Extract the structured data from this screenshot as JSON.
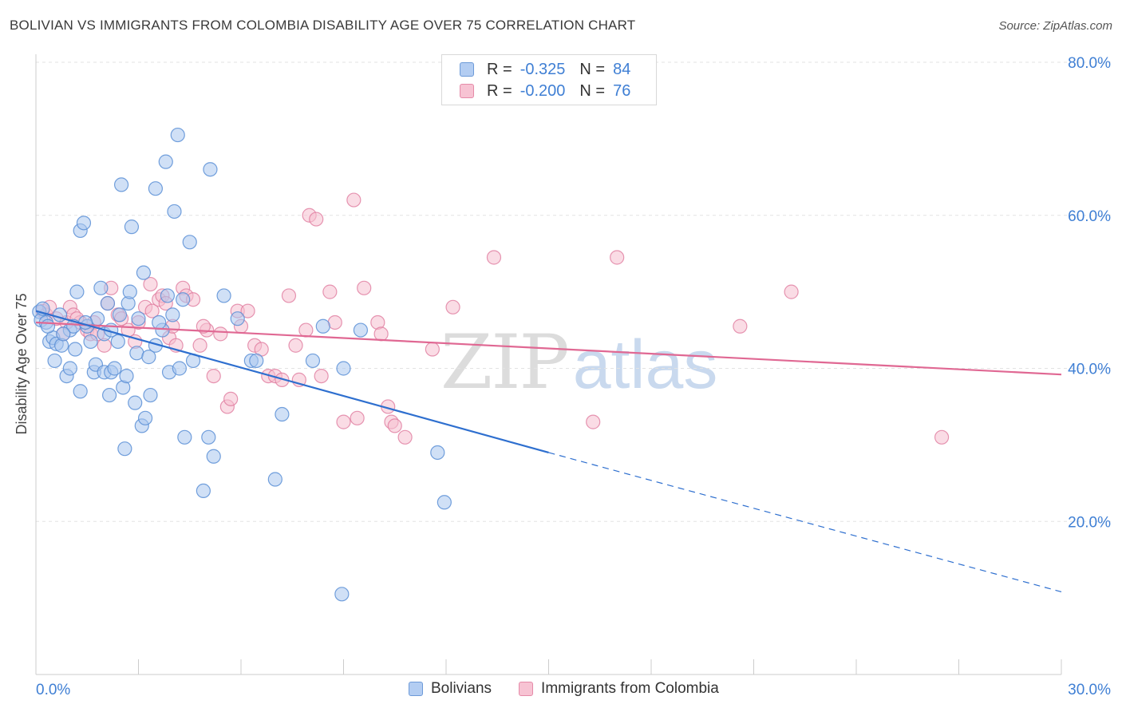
{
  "header": {
    "title": "BOLIVIAN VS IMMIGRANTS FROM COLOMBIA DISABILITY AGE OVER 75 CORRELATION CHART",
    "source": "Source: ZipAtlas.com"
  },
  "watermark": {
    "zip": "ZIP",
    "atlas": "atlas"
  },
  "legend": {
    "rows": [
      {
        "r_label": "R =",
        "r_value": "-0.325",
        "n_label": "N =",
        "n_value": "84"
      },
      {
        "r_label": "R =",
        "r_value": "-0.200",
        "n_label": "N =",
        "n_value": "76"
      }
    ]
  },
  "bottom_legend": {
    "series1": "Bolivians",
    "series2": "Immigrants from Colombia"
  },
  "colors": {
    "blue_fill": "#a9c6ef",
    "blue_stroke": "#5b8fd6",
    "blue_line": "#2e6fcf",
    "pink_fill": "#f6bfd0",
    "pink_stroke": "#e07c9f",
    "pink_line": "#e06893",
    "tick_label": "#3f7fd4",
    "grid": "#e3e3e3"
  },
  "chart_data": {
    "type": "scatter",
    "title": "BOLIVIAN VS IMMIGRANTS FROM COLOMBIA DISABILITY AGE OVER 75 CORRELATION CHART",
    "ylabel": "Disability Age Over 75",
    "xlabel": "",
    "xlim": [
      0,
      30
    ],
    "ylim": [
      0,
      80
    ],
    "x_ticks_labeled": [
      0,
      30
    ],
    "x_tick_labels": [
      "0.0%",
      "30.0%"
    ],
    "x_minor_ticks": [
      3,
      6,
      9,
      12,
      15,
      18,
      21,
      24,
      27
    ],
    "y_ticks": [
      20,
      40,
      60,
      80
    ],
    "y_tick_labels": [
      "20.0%",
      "40.0%",
      "60.0%",
      "80.0%"
    ],
    "grid": "horizontal dashed",
    "legend_position": "top-center",
    "series": [
      {
        "name": "Bolivians",
        "color": "blue",
        "points": [
          [
            0.1,
            47.4
          ],
          [
            0.15,
            46.3
          ],
          [
            0.2,
            47.8
          ],
          [
            0.3,
            46.0
          ],
          [
            0.4,
            43.5
          ],
          [
            0.5,
            44.0
          ],
          [
            0.55,
            41.0
          ],
          [
            0.6,
            43.2
          ],
          [
            0.7,
            47.0
          ],
          [
            0.75,
            43.0
          ],
          [
            0.9,
            39.0
          ],
          [
            1.0,
            45.0
          ],
          [
            1.1,
            45.5
          ],
          [
            1.15,
            42.5
          ],
          [
            1.2,
            50.0
          ],
          [
            1.3,
            37.0
          ],
          [
            1.3,
            58.0
          ],
          [
            1.4,
            59.0
          ],
          [
            1.5,
            45.5
          ],
          [
            1.6,
            43.5
          ],
          [
            1.7,
            39.5
          ],
          [
            1.75,
            40.5
          ],
          [
            1.8,
            46.5
          ],
          [
            1.9,
            50.5
          ],
          [
            2.0,
            44.5
          ],
          [
            2.0,
            39.5
          ],
          [
            2.1,
            48.5
          ],
          [
            2.15,
            36.5
          ],
          [
            2.2,
            39.5
          ],
          [
            2.3,
            40.0
          ],
          [
            2.4,
            43.5
          ],
          [
            2.45,
            47.0
          ],
          [
            2.5,
            64.0
          ],
          [
            2.55,
            37.5
          ],
          [
            2.6,
            29.5
          ],
          [
            2.65,
            39.0
          ],
          [
            2.7,
            48.5
          ],
          [
            2.75,
            50.0
          ],
          [
            2.8,
            58.5
          ],
          [
            2.9,
            35.5
          ],
          [
            2.95,
            42.0
          ],
          [
            3.0,
            46.5
          ],
          [
            3.1,
            32.5
          ],
          [
            3.15,
            52.5
          ],
          [
            3.2,
            33.5
          ],
          [
            3.3,
            41.5
          ],
          [
            3.35,
            36.5
          ],
          [
            3.5,
            43.0
          ],
          [
            3.5,
            63.5
          ],
          [
            3.7,
            45.0
          ],
          [
            3.8,
            67.0
          ],
          [
            3.85,
            49.5
          ],
          [
            3.9,
            39.5
          ],
          [
            4.0,
            47.0
          ],
          [
            4.05,
            60.5
          ],
          [
            4.15,
            70.5
          ],
          [
            4.2,
            40.0
          ],
          [
            4.3,
            49.0
          ],
          [
            4.35,
            31.0
          ],
          [
            4.5,
            56.5
          ],
          [
            4.6,
            41.0
          ],
          [
            4.9,
            24.0
          ],
          [
            5.05,
            31.0
          ],
          [
            5.1,
            66.0
          ],
          [
            5.2,
            28.5
          ],
          [
            5.5,
            49.5
          ],
          [
            5.9,
            46.5
          ],
          [
            6.3,
            41.0
          ],
          [
            6.45,
            41.0
          ],
          [
            7.0,
            25.5
          ],
          [
            7.2,
            34.0
          ],
          [
            8.1,
            41.0
          ],
          [
            8.4,
            45.5
          ],
          [
            8.95,
            10.5
          ],
          [
            9.0,
            40.0
          ],
          [
            9.5,
            45.0
          ],
          [
            11.75,
            29.0
          ],
          [
            11.95,
            22.5
          ],
          [
            0.35,
            45.5
          ],
          [
            0.8,
            44.5
          ],
          [
            1.0,
            40.0
          ],
          [
            1.45,
            46.0
          ],
          [
            2.2,
            45.0
          ],
          [
            3.6,
            46.0
          ]
        ],
        "trend_solid": {
          "x": [
            0,
            15
          ],
          "y": [
            47.5,
            29.0
          ]
        },
        "trend_dashed": {
          "x": [
            15,
            30
          ],
          "y": [
            29.0,
            10.8
          ]
        }
      },
      {
        "name": "Immigrants from Colombia",
        "color": "pink",
        "points": [
          [
            0.2,
            47.5
          ],
          [
            0.3,
            47.0
          ],
          [
            0.4,
            48.0
          ],
          [
            0.6,
            46.5
          ],
          [
            0.8,
            44.5
          ],
          [
            0.9,
            46.0
          ],
          [
            1.0,
            48.0
          ],
          [
            1.1,
            47.0
          ],
          [
            1.3,
            46.0
          ],
          [
            1.5,
            45.0
          ],
          [
            1.6,
            44.5
          ],
          [
            1.7,
            46.0
          ],
          [
            1.8,
            44.5
          ],
          [
            2.0,
            43.0
          ],
          [
            2.1,
            48.5
          ],
          [
            2.2,
            50.5
          ],
          [
            2.4,
            47.0
          ],
          [
            2.5,
            46.5
          ],
          [
            2.7,
            45.0
          ],
          [
            2.9,
            43.5
          ],
          [
            3.0,
            46.0
          ],
          [
            3.2,
            48.0
          ],
          [
            3.35,
            51.0
          ],
          [
            3.4,
            47.5
          ],
          [
            3.6,
            49.0
          ],
          [
            3.7,
            49.5
          ],
          [
            3.8,
            48.5
          ],
          [
            3.9,
            44.0
          ],
          [
            4.0,
            45.5
          ],
          [
            4.1,
            43.0
          ],
          [
            4.3,
            50.5
          ],
          [
            4.4,
            49.5
          ],
          [
            4.6,
            49.0
          ],
          [
            4.8,
            43.0
          ],
          [
            5.0,
            45.0
          ],
          [
            5.2,
            39.0
          ],
          [
            5.4,
            44.5
          ],
          [
            5.6,
            35.0
          ],
          [
            5.7,
            36.0
          ],
          [
            5.9,
            47.5
          ],
          [
            6.0,
            45.5
          ],
          [
            6.2,
            47.5
          ],
          [
            6.4,
            43.0
          ],
          [
            6.6,
            42.5
          ],
          [
            6.8,
            39.0
          ],
          [
            7.0,
            39.0
          ],
          [
            7.2,
            38.5
          ],
          [
            7.6,
            43.0
          ],
          [
            7.7,
            38.5
          ],
          [
            7.9,
            45.0
          ],
          [
            8.0,
            60.0
          ],
          [
            8.2,
            59.5
          ],
          [
            8.35,
            39.0
          ],
          [
            8.6,
            50.0
          ],
          [
            8.75,
            46.0
          ],
          [
            9.0,
            33.0
          ],
          [
            9.3,
            62.0
          ],
          [
            9.4,
            33.5
          ],
          [
            9.6,
            50.5
          ],
          [
            10.0,
            46.0
          ],
          [
            10.1,
            44.5
          ],
          [
            10.3,
            35.0
          ],
          [
            10.4,
            33.0
          ],
          [
            10.5,
            32.5
          ],
          [
            10.8,
            31.0
          ],
          [
            11.6,
            42.5
          ],
          [
            12.2,
            48.0
          ],
          [
            13.4,
            54.5
          ],
          [
            16.3,
            33.0
          ],
          [
            17.0,
            54.5
          ],
          [
            20.6,
            45.5
          ],
          [
            22.1,
            50.0
          ],
          [
            26.5,
            31.0
          ],
          [
            7.4,
            49.5
          ],
          [
            4.9,
            45.5
          ],
          [
            1.2,
            46.5
          ]
        ],
        "trend_solid": {
          "x": [
            0,
            30
          ],
          "y": [
            46.0,
            39.2
          ]
        }
      }
    ]
  }
}
